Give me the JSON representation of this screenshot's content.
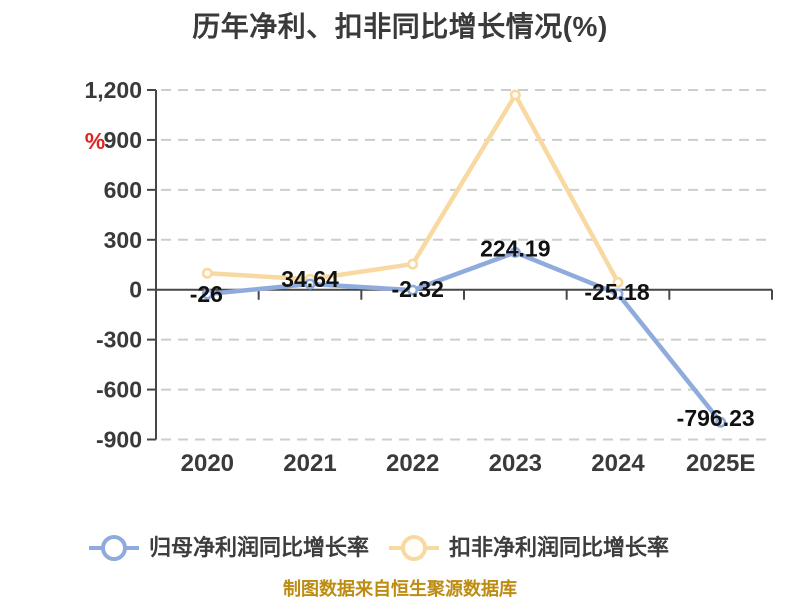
{
  "title": "历年净利、扣非同比增长情况(%)",
  "footer": "制图数据来自恒生聚源数据库",
  "chart_data": {
    "type": "line",
    "title": "历年净利、扣非同比增长情况(%)",
    "categories": [
      "2020",
      "2021",
      "2022",
      "2023",
      "2024",
      "2025E"
    ],
    "y_axis": {
      "unit_label": "%",
      "unit_label_color": "#e02424",
      "tick_labels": [
        "1,200",
        "900",
        "600",
        "300",
        "0",
        "-300",
        "-600",
        "-900"
      ],
      "tick_values": [
        1200,
        900,
        600,
        300,
        0,
        -300,
        -600,
        -900
      ],
      "ylim": [
        -900,
        1200
      ]
    },
    "grid": {
      "horizontal_dashed": true,
      "color": "#cdcdcd"
    },
    "axis_color": "#474747",
    "text_colors": {
      "tick": "#3a3a3a",
      "data_label": "#111111"
    },
    "legend_position": "bottom",
    "series": [
      {
        "name": "归母净利润同比增长率",
        "color": "#8faadc",
        "marker_fill": "#ffffff",
        "values": [
          -26,
          34.64,
          -2.32,
          224.19,
          -25.18,
          -796.23
        ],
        "point_labels": [
          "-26",
          "34.64",
          "-2.32",
          "224.19",
          "-25.18",
          "-796.23"
        ]
      },
      {
        "name": "扣非净利润同比增长率",
        "color": "#f8d9a2",
        "marker_fill": "#fffdf6",
        "values": [
          99,
          63,
          154,
          1170,
          44,
          null
        ],
        "estimated": true,
        "point_labels": []
      }
    ]
  }
}
